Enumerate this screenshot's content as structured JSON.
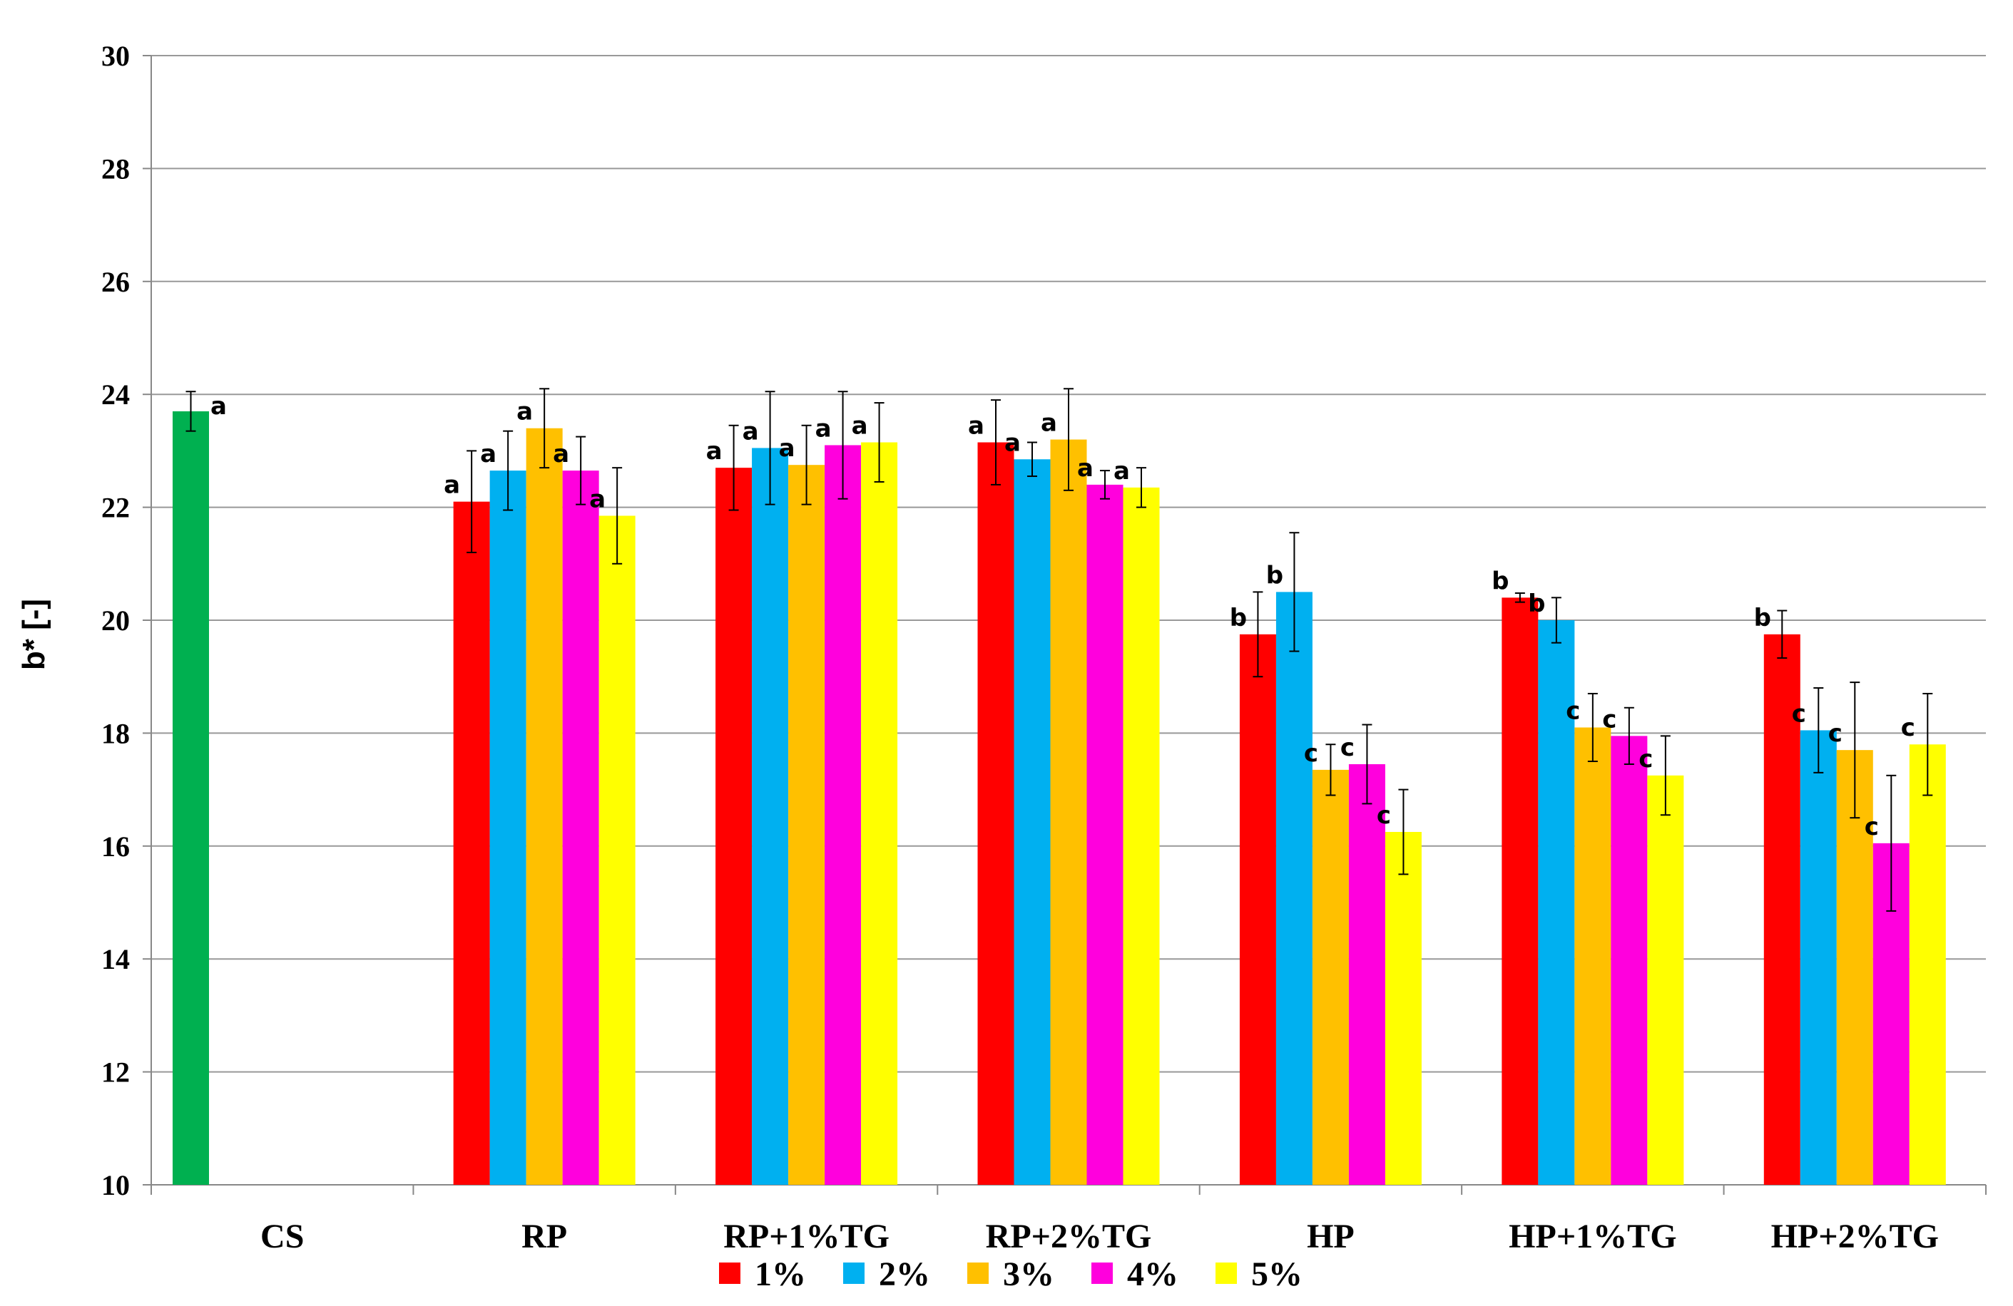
{
  "chart_data": {
    "type": "bar",
    "title": "",
    "xlabel": "",
    "ylabel": "b* [-]",
    "ylim": [
      10,
      30
    ],
    "yticks": [
      10,
      12,
      14,
      16,
      18,
      20,
      22,
      24,
      26,
      28,
      30
    ],
    "grid": true,
    "legend_position": "bottom",
    "categories": [
      "CS",
      "RP",
      "RP+1%TG",
      "RP+2%TG",
      "HP",
      "HP+1%TG",
      "HP+2%TG"
    ],
    "control": {
      "name": "CS",
      "value": 23.7,
      "error": 0.35,
      "label": "a",
      "color": "#00B050"
    },
    "series": [
      {
        "name": "1%",
        "color": "#FF0000",
        "values": [
          null,
          22.1,
          22.7,
          23.15,
          19.75,
          20.4,
          19.75
        ],
        "errors": [
          null,
          0.9,
          0.75,
          0.75,
          0.75,
          0.08,
          0.42
        ],
        "labels": [
          null,
          "a",
          "a",
          "a",
          "b",
          "b",
          "b"
        ]
      },
      {
        "name": "2%",
        "color": "#00B0F0",
        "values": [
          null,
          22.65,
          23.05,
          22.85,
          20.5,
          20.0,
          18.05
        ],
        "errors": [
          null,
          0.7,
          1.0,
          0.3,
          1.05,
          0.4,
          0.75
        ],
        "labels": [
          null,
          "a",
          "a",
          "a",
          "b",
          "b",
          "c"
        ]
      },
      {
        "name": "3%",
        "color": "#FFC000",
        "values": [
          null,
          23.4,
          22.75,
          23.2,
          17.35,
          18.1,
          17.7
        ],
        "errors": [
          null,
          0.7,
          0.7,
          0.9,
          0.45,
          0.6,
          1.2
        ],
        "labels": [
          null,
          "a",
          "a",
          "a",
          "c",
          "c",
          "c"
        ]
      },
      {
        "name": "4%",
        "color": "#FF00DD",
        "values": [
          null,
          22.65,
          23.1,
          22.4,
          17.45,
          17.95,
          16.05
        ],
        "errors": [
          null,
          0.6,
          0.95,
          0.25,
          0.7,
          0.5,
          1.2
        ],
        "labels": [
          null,
          "a",
          "a",
          "a",
          "c",
          "c",
          "c"
        ]
      },
      {
        "name": "5%",
        "color": "#FFFF00",
        "values": [
          null,
          21.85,
          23.15,
          22.35,
          16.25,
          17.25,
          17.8
        ],
        "errors": [
          null,
          0.85,
          0.7,
          0.35,
          0.75,
          0.7,
          0.9
        ],
        "labels": [
          null,
          "a",
          "a",
          "a",
          "c",
          "c",
          "c"
        ]
      }
    ]
  }
}
